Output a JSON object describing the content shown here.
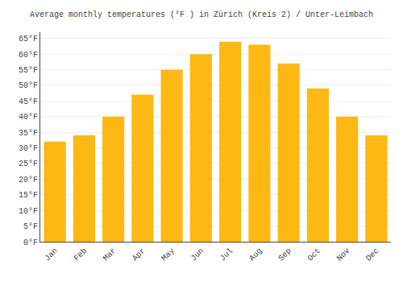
{
  "chart_data": {
    "type": "bar",
    "title": "Average monthly temperatures (°F ) in Zürich (Kreis 2) / Unter-Leimbach",
    "categories": [
      "Jan",
      "Feb",
      "Mar",
      "Apr",
      "May",
      "Jun",
      "Jul",
      "Aug",
      "Sep",
      "Oct",
      "Nov",
      "Dec"
    ],
    "values": [
      32,
      34,
      40,
      47,
      55,
      60,
      64,
      63,
      57,
      49,
      40,
      34
    ],
    "color": "#FDB813",
    "ylim": [
      0,
      67
    ],
    "yticks": [
      {
        "value": 0,
        "label": "0°F"
      },
      {
        "value": 5,
        "label": "5°F"
      },
      {
        "value": 10,
        "label": "10°F"
      },
      {
        "value": 15,
        "label": "15°F"
      },
      {
        "value": 20,
        "label": "20°F"
      },
      {
        "value": 25,
        "label": "25°F"
      },
      {
        "value": 30,
        "label": "30°F"
      },
      {
        "value": 35,
        "label": "35°F"
      },
      {
        "value": 40,
        "label": "40°F"
      },
      {
        "value": 45,
        "label": "45°F"
      },
      {
        "value": 50,
        "label": "50°F"
      },
      {
        "value": 55,
        "label": "55°F"
      },
      {
        "value": 60,
        "label": "60°F"
      },
      {
        "value": 65,
        "label": "65°F"
      }
    ],
    "grid": true
  }
}
